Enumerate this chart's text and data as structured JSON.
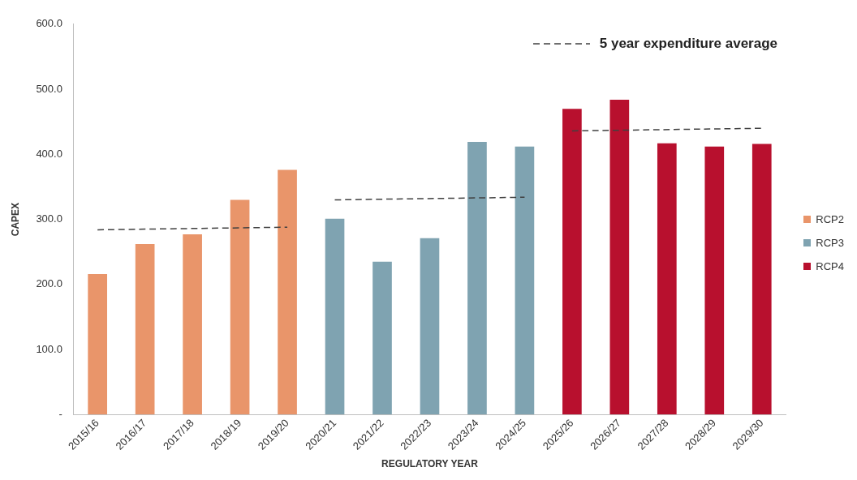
{
  "chart_data": {
    "type": "bar",
    "xlabel": "REGULATORY YEAR",
    "ylabel": "CAPEX",
    "categories": [
      "2015/16",
      "2016/17",
      "2017/18",
      "2018/19",
      "2019/20",
      "2020/21",
      "2021/22",
      "2022/23",
      "2023/24",
      "2024/25",
      "2025/26",
      "2026/27",
      "2027/28",
      "2028/29",
      "2029/30"
    ],
    "series": [
      {
        "name": "RCP2",
        "color": "#e9956a",
        "values": [
          216,
          262,
          277,
          330,
          376,
          null,
          null,
          null,
          null,
          null,
          null,
          null,
          null,
          null,
          null
        ]
      },
      {
        "name": "RCP3",
        "color": "#7fa3b1",
        "values": [
          null,
          null,
          null,
          null,
          null,
          301,
          235,
          271,
          419,
          412,
          null,
          null,
          null,
          null,
          null
        ]
      },
      {
        "name": "RCP4",
        "color": "#b8102e",
        "values": [
          null,
          null,
          null,
          null,
          null,
          null,
          null,
          null,
          null,
          null,
          470,
          484,
          417,
          412,
          416
        ]
      },
      {
        "name": "5 year expenditure average",
        "type": "line",
        "color": "#404040",
        "line_style": "dashed",
        "marker": "none",
        "values": [
          284,
          null,
          null,
          null,
          288,
          null,
          null,
          null,
          null,
          null,
          null,
          null,
          null,
          null,
          null
        ]
      },
      {
        "type": "line",
        "color": "#404040",
        "line_style": "dashed",
        "marker": "none",
        "values": [
          null,
          null,
          null,
          null,
          null,
          330,
          null,
          null,
          null,
          334,
          null,
          null,
          null,
          null,
          null
        ]
      },
      {
        "type": "line",
        "color": "#404040",
        "line_style": "dashed",
        "marker": "none",
        "values": [
          null,
          null,
          null,
          null,
          null,
          null,
          null,
          null,
          null,
          null,
          436,
          null,
          null,
          null,
          440
        ]
      }
    ],
    "ylim": [
      0,
      600
    ],
    "yticks": [
      {
        "value": 0,
        "label": "-"
      },
      {
        "value": 100,
        "label": "100.0"
      },
      {
        "value": 200,
        "label": "200.0"
      },
      {
        "value": 300,
        "label": "300.0"
      },
      {
        "value": 400,
        "label": "400.0"
      },
      {
        "value": 500,
        "label": "500.0"
      },
      {
        "value": 600,
        "label": "600.0"
      }
    ],
    "grid": false,
    "legend": "right"
  }
}
